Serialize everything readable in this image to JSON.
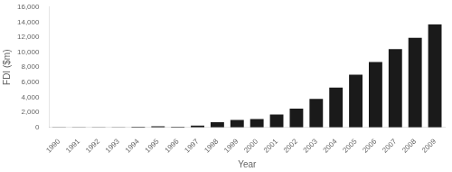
{
  "chart_data": {
    "type": "bar",
    "categories": [
      "1990",
      "1991",
      "1992",
      "1993",
      "1994",
      "1995",
      "1996",
      "1997",
      "1998",
      "1999",
      "2000",
      "2001",
      "2002",
      "2003",
      "2004",
      "2005",
      "2006",
      "2007",
      "2008",
      "2009"
    ],
    "values": [
      15,
      15,
      20,
      25,
      100,
      150,
      100,
      250,
      700,
      1000,
      1100,
      1700,
      2500,
      3800,
      5300,
      7000,
      8700,
      10400,
      11900,
      13700
    ],
    "color": "#1a1a1a",
    "xlabel": "Year",
    "ylabel": "FDI ($m)",
    "ylim": [
      0,
      16000
    ],
    "yticks": [
      0,
      {
        "value": 2000,
        "label": "2,000"
      },
      {
        "value": 4000,
        "label": "4,000"
      },
      {
        "value": 6000,
        "label": "6,000"
      },
      {
        "value": 8000,
        "label": "8,000"
      },
      {
        "value": 10000,
        "label": "10,000"
      },
      {
        "value": 12000,
        "label": "12,000"
      },
      {
        "value": 14000,
        "label": "14,000"
      },
      {
        "value": 16000,
        "label": "16,000"
      }
    ],
    "grid": false
  }
}
